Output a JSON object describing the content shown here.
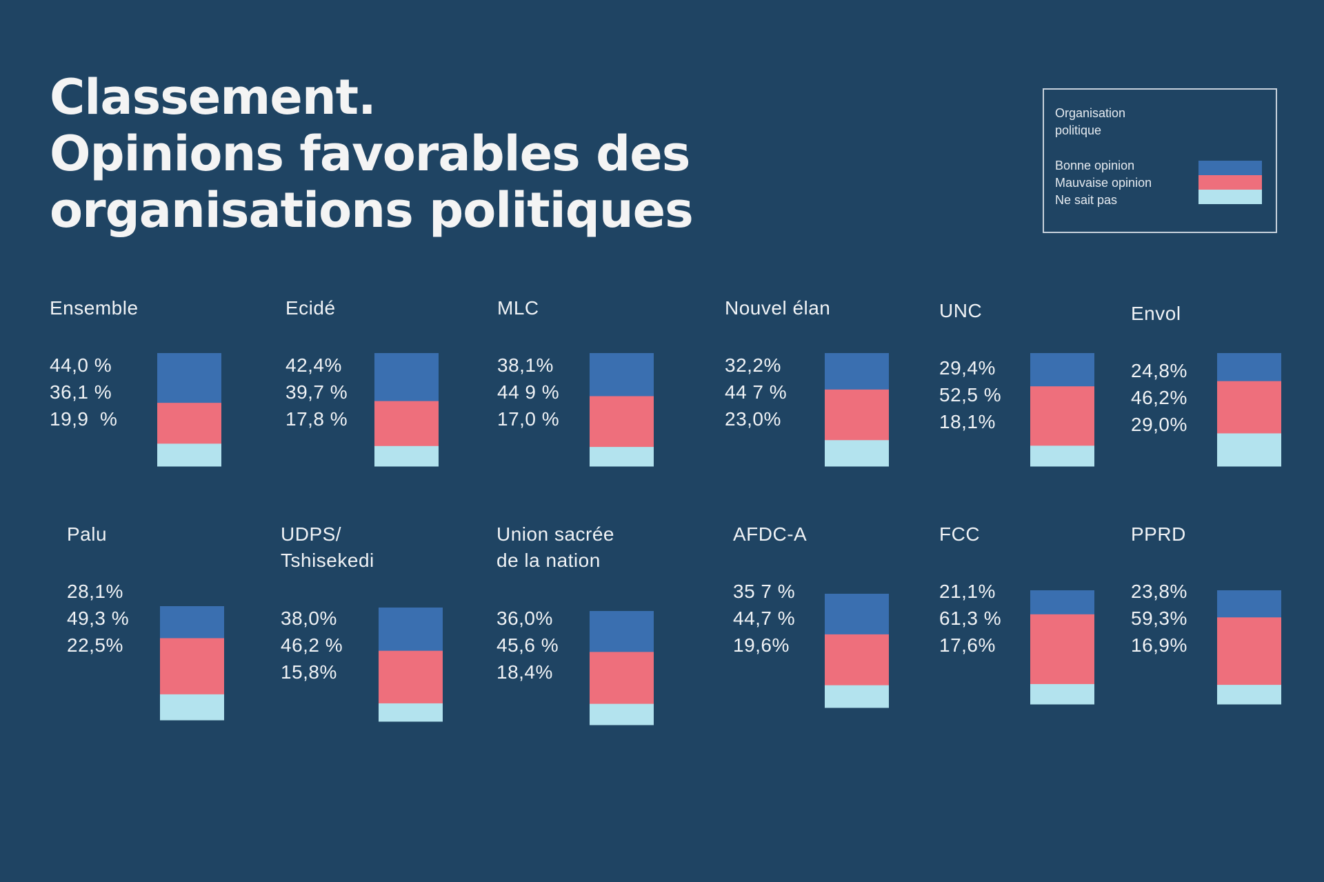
{
  "title_lines": [
    "Classement.",
    "Opinions favorables des",
    "organisations politiques"
  ],
  "legend": {
    "heading": "Organisation politique",
    "items": [
      {
        "label": "Bonne opinion",
        "color": "#3a6fb0"
      },
      {
        "label": "Mauvaise opinion",
        "color": "#ee6f7c"
      },
      {
        "label": "Ne sait pas",
        "color": "#b3e3ee"
      }
    ]
  },
  "chart_data": {
    "type": "bar",
    "stacked": true,
    "series_names": [
      "Bonne opinion",
      "Mauvaise opinion",
      "Ne sait pas"
    ],
    "colors": [
      "#3a6fb0",
      "#ee6f7c",
      "#b3e3ee"
    ],
    "panels": [
      {
        "name": "Ensemble",
        "labels": [
          "44,0 %",
          "36,1 %",
          "19,9  %"
        ],
        "values": [
          44.0,
          36.1,
          19.9
        ]
      },
      {
        "name": "Ecidé",
        "labels": [
          "42,4%",
          "39,7 %",
          "17,8 %"
        ],
        "values": [
          42.4,
          39.7,
          17.8
        ]
      },
      {
        "name": "MLC",
        "labels": [
          "38,1%",
          "44 9 %",
          "17,0 %"
        ],
        "values": [
          38.1,
          44.9,
          17.0
        ]
      },
      {
        "name": "Nouvel élan",
        "labels": [
          "32,2%",
          "44 7 %",
          "23,0%"
        ],
        "values": [
          32.2,
          44.7,
          23.0
        ]
      },
      {
        "name": "UNC",
        "labels": [
          "29,4%",
          "52,5 %",
          "18,1%"
        ],
        "values": [
          29.4,
          52.5,
          18.1
        ]
      },
      {
        "name": "Envol",
        "labels": [
          "24,8%",
          "46,2%",
          "29,0%"
        ],
        "values": [
          24.8,
          46.2,
          29.0
        ]
      },
      {
        "name": "Palu",
        "labels": [
          "28,1%",
          "49,3 %",
          "22,5%"
        ],
        "values": [
          28.1,
          49.3,
          22.5
        ]
      },
      {
        "name": "UDPS/ Tshisekedi",
        "labels": [
          "38,0%",
          "46,2 %",
          "15,8%"
        ],
        "values": [
          38.0,
          46.2,
          15.8
        ]
      },
      {
        "name": "Union sacrée de la nation",
        "labels": [
          "36,0%",
          "45,6 %",
          "18,4%"
        ],
        "values": [
          36.0,
          45.6,
          18.4
        ]
      },
      {
        "name": "AFDC-A",
        "labels": [
          "35 7 %",
          "44,7 %",
          "19,6%"
        ],
        "values": [
          35.7,
          44.7,
          19.6
        ]
      },
      {
        "name": "FCC",
        "labels": [
          "21,1%",
          "61,3 %",
          "17,6%"
        ],
        "values": [
          21.1,
          61.3,
          17.6
        ]
      },
      {
        "name": "PPRD",
        "labels": [
          "23,8%",
          "59,3%",
          "16,9%"
        ],
        "values": [
          23.8,
          59.3,
          16.9
        ]
      }
    ]
  }
}
